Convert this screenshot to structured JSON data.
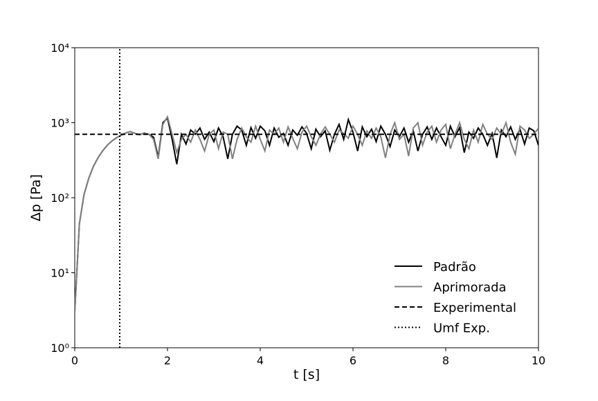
{
  "chart_data": {
    "type": "line",
    "xlabel": "t [s]",
    "ylabel": "Δp [Pa]",
    "xlim": [
      0,
      10
    ],
    "xticks": [
      0,
      2,
      4,
      6,
      8,
      10
    ],
    "ylim": [
      1,
      10000
    ],
    "log_y": true,
    "yticks": [
      {
        "value": 1,
        "label": "10⁰"
      },
      {
        "value": 10,
        "label": "10¹"
      },
      {
        "value": 100,
        "label": "10²"
      },
      {
        "value": 1000,
        "label": "10³"
      },
      {
        "value": 10000,
        "label": "10⁴"
      }
    ],
    "legend": "lower right",
    "x": [
      0,
      0.1,
      0.2,
      0.3,
      0.4,
      0.5,
      0.6,
      0.7,
      0.8,
      0.9,
      1,
      1.1,
      1.2,
      1.3,
      1.4,
      1.5,
      1.6,
      1.7,
      1.8,
      1.9,
      2,
      2.1,
      2.2,
      2.3,
      2.4,
      2.5,
      2.6,
      2.7,
      2.8,
      2.9,
      3,
      3.1,
      3.2,
      3.3,
      3.4,
      3.5,
      3.6,
      3.7,
      3.8,
      3.9,
      4,
      4.1,
      4.2,
      4.3,
      4.4,
      4.5,
      4.6,
      4.7,
      4.8,
      4.9,
      5,
      5.1,
      5.2,
      5.3,
      5.4,
      5.5,
      5.6,
      5.7,
      5.8,
      5.9,
      6,
      6.1,
      6.2,
      6.3,
      6.4,
      6.5,
      6.6,
      6.7,
      6.8,
      6.9,
      7,
      7.1,
      7.2,
      7.3,
      7.4,
      7.5,
      7.6,
      7.7,
      7.8,
      7.9,
      8,
      8.1,
      8.2,
      8.3,
      8.4,
      8.5,
      8.6,
      8.7,
      8.8,
      8.9,
      9,
      9.1,
      9.2,
      9.3,
      9.4,
      9.5,
      9.6,
      9.7,
      9.8,
      9.9,
      10
    ],
    "series": [
      {
        "name": "Padrão",
        "color": "#000000",
        "linestyle": "solid",
        "values": [
          3,
          45,
          110,
          180,
          260,
          340,
          420,
          500,
          570,
          630,
          680,
          730,
          760,
          720,
          690,
          730,
          700,
          640,
          350,
          1000,
          1150,
          600,
          280,
          700,
          520,
          800,
          700,
          850,
          600,
          750,
          560,
          850,
          650,
          330,
          700,
          900,
          800,
          500,
          860,
          620,
          900,
          780,
          500,
          850,
          640,
          720,
          500,
          800,
          680,
          880,
          720,
          450,
          820,
          650,
          780,
          430,
          700,
          950,
          600,
          1100,
          750,
          420,
          880,
          650,
          820,
          560,
          900,
          700,
          480,
          800,
          650,
          850,
          550,
          780,
          420,
          700,
          880,
          600,
          850,
          650,
          500,
          900,
          650,
          860,
          400,
          750,
          620,
          850,
          700,
          500,
          720,
          340,
          800,
          650,
          880,
          600,
          820,
          520,
          850,
          780,
          500
        ]
      },
      {
        "name": "Aprimorada",
        "color": "#808080",
        "linestyle": "solid",
        "values": [
          3,
          45,
          110,
          180,
          260,
          340,
          420,
          500,
          570,
          630,
          680,
          730,
          760,
          720,
          690,
          730,
          700,
          600,
          330,
          950,
          1200,
          700,
          400,
          600,
          700,
          550,
          800,
          600,
          420,
          700,
          800,
          450,
          750,
          700,
          330,
          600,
          850,
          650,
          550,
          900,
          600,
          420,
          800,
          700,
          850,
          550,
          880,
          620,
          450,
          750,
          900,
          650,
          500,
          700,
          880,
          700,
          550,
          800,
          720,
          620,
          900,
          700,
          500,
          780,
          620,
          850,
          650,
          340,
          700,
          1000,
          600,
          700,
          360,
          850,
          1000,
          500,
          750,
          900,
          550,
          800,
          950,
          450,
          700,
          1000,
          600,
          450,
          800,
          550,
          950,
          700,
          600,
          850,
          700,
          1000,
          550,
          380,
          900,
          800,
          620,
          700,
          850
        ]
      },
      {
        "name": "Experimental",
        "color": "#000000",
        "linestyle": "dashed",
        "x": [
          0,
          10
        ],
        "values": [
          700,
          700
        ]
      },
      {
        "name": "Umf Exp.",
        "color": "#000000",
        "linestyle": "dotted",
        "x": [
          0.97,
          0.97
        ],
        "values": [
          1,
          10000
        ]
      }
    ]
  }
}
